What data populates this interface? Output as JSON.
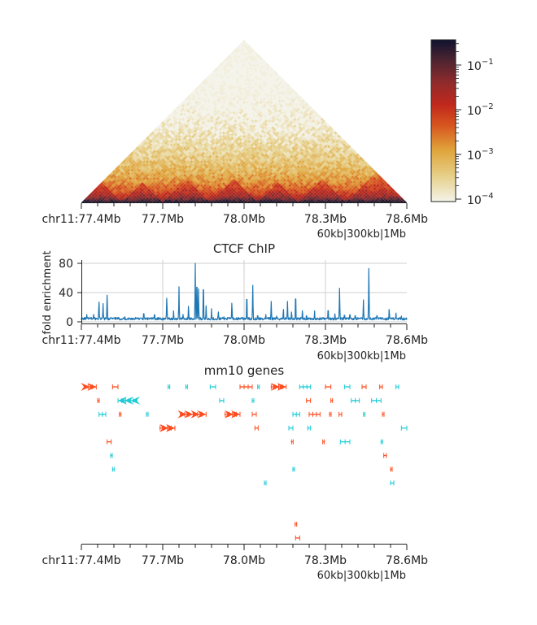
{
  "chart_data": [
    {
      "type": "heatmap",
      "panel": "hic_contact_map",
      "region": "chr11:77.4Mb-78.6Mb",
      "x_ticks": [
        "chr11:77.4Mb",
        "77.7Mb",
        "78.0Mb",
        "78.3Mb",
        "78.6Mb"
      ],
      "x_tick_values_mb": [
        77.4,
        77.7,
        78.0,
        78.3,
        78.6
      ],
      "scale_note": "60kb|300kb|1Mb",
      "colorbar": {
        "scale": "log",
        "range": [
          0.0001,
          0.3
        ],
        "tick_labels": [
          "10^-1",
          "10^-2",
          "10^-3",
          "10^-4"
        ],
        "tick_values": [
          0.1,
          0.01,
          0.001,
          0.0001
        ],
        "colormap": [
          "#f4f3ea",
          "#e6cf88",
          "#e0a33a",
          "#d7561f",
          "#c0281c",
          "#8e2a2c",
          "#4a2430",
          "#0f1230"
        ]
      },
      "tad_boundaries_mb": [
        77.4,
        77.55,
        77.7,
        77.88,
        78.05,
        78.2,
        78.38,
        78.6
      ]
    },
    {
      "type": "line",
      "panel": "chip_track",
      "title": "CTCF ChIP",
      "ylabel": "fold enrichment",
      "ylim": [
        0,
        85
      ],
      "y_ticks": [
        "0",
        "40",
        "80"
      ],
      "y_tick_values": [
        0,
        40,
        80
      ],
      "x_ticks": [
        "chr11:77.4Mb",
        "77.7Mb",
        "78.0Mb",
        "78.3Mb",
        "78.6Mb"
      ],
      "x_tick_values_mb": [
        77.4,
        77.7,
        78.0,
        78.3,
        78.6
      ],
      "scale_note": "60kb|300kb|1Mb",
      "grid": true,
      "color": "#1f77b4",
      "baseline": 2.5,
      "peaks": [
        {
          "x": 77.42,
          "y": 10
        },
        {
          "x": 77.43,
          "y": 7
        },
        {
          "x": 77.445,
          "y": 12
        },
        {
          "x": 77.465,
          "y": 32
        },
        {
          "x": 77.48,
          "y": 25
        },
        {
          "x": 77.495,
          "y": 43
        },
        {
          "x": 77.51,
          "y": 8
        },
        {
          "x": 77.53,
          "y": 6
        },
        {
          "x": 77.56,
          "y": 7
        },
        {
          "x": 77.6,
          "y": 6
        },
        {
          "x": 77.63,
          "y": 16
        },
        {
          "x": 77.67,
          "y": 14
        },
        {
          "x": 77.715,
          "y": 38
        },
        {
          "x": 77.74,
          "y": 15
        },
        {
          "x": 77.76,
          "y": 48
        },
        {
          "x": 77.775,
          "y": 12
        },
        {
          "x": 77.795,
          "y": 25
        },
        {
          "x": 77.82,
          "y": 80
        },
        {
          "x": 77.826,
          "y": 68
        },
        {
          "x": 77.832,
          "y": 45
        },
        {
          "x": 77.85,
          "y": 63
        },
        {
          "x": 77.86,
          "y": 22
        },
        {
          "x": 77.88,
          "y": 18
        },
        {
          "x": 77.905,
          "y": 16
        },
        {
          "x": 77.925,
          "y": 8
        },
        {
          "x": 77.955,
          "y": 30
        },
        {
          "x": 77.99,
          "y": 8
        },
        {
          "x": 78.01,
          "y": 44
        },
        {
          "x": 78.032,
          "y": 50
        },
        {
          "x": 78.05,
          "y": 12
        },
        {
          "x": 78.08,
          "y": 10
        },
        {
          "x": 78.1,
          "y": 28
        },
        {
          "x": 78.12,
          "y": 8
        },
        {
          "x": 78.145,
          "y": 20
        },
        {
          "x": 78.16,
          "y": 28
        },
        {
          "x": 78.175,
          "y": 16
        },
        {
          "x": 78.19,
          "y": 45
        },
        {
          "x": 78.215,
          "y": 18
        },
        {
          "x": 78.23,
          "y": 12
        },
        {
          "x": 78.26,
          "y": 15
        },
        {
          "x": 78.29,
          "y": 8
        },
        {
          "x": 78.31,
          "y": 22
        },
        {
          "x": 78.335,
          "y": 13
        },
        {
          "x": 78.352,
          "y": 46
        },
        {
          "x": 78.37,
          "y": 13
        },
        {
          "x": 78.39,
          "y": 14
        },
        {
          "x": 78.41,
          "y": 12
        },
        {
          "x": 78.44,
          "y": 30
        },
        {
          "x": 78.46,
          "y": 73
        },
        {
          "x": 78.49,
          "y": 12
        },
        {
          "x": 78.51,
          "y": 8
        },
        {
          "x": 78.535,
          "y": 20
        },
        {
          "x": 78.56,
          "y": 12
        },
        {
          "x": 78.58,
          "y": 8
        }
      ]
    },
    {
      "type": "gene_track",
      "panel": "gene_annotation",
      "title": "mm10 genes",
      "x_ticks": [
        "chr11:77.4Mb",
        "77.7Mb",
        "78.0Mb",
        "78.3Mb",
        "78.6Mb"
      ],
      "x_tick_values_mb": [
        77.4,
        77.7,
        78.0,
        78.3,
        78.6
      ],
      "scale_note": "60kb|300kb|1Mb",
      "colors": {
        "plus_strand": "#ff4a1c",
        "minus_strand": "#1ccbd5"
      },
      "genes": [
        {
          "row": 0,
          "start": 77.41,
          "end": 77.455,
          "strand": "+",
          "large": true
        },
        {
          "row": 0,
          "start": 77.515,
          "end": 77.535,
          "strand": "+"
        },
        {
          "row": 0,
          "start": 77.72,
          "end": 77.724,
          "strand": "-"
        },
        {
          "row": 0,
          "start": 77.785,
          "end": 77.789,
          "strand": "-"
        },
        {
          "row": 0,
          "start": 77.875,
          "end": 77.895,
          "strand": "-"
        },
        {
          "row": 0,
          "start": 77.985,
          "end": 78.03,
          "strand": "+"
        },
        {
          "row": 0,
          "start": 78.05,
          "end": 78.054,
          "strand": "-"
        },
        {
          "row": 0,
          "start": 78.1,
          "end": 78.155,
          "strand": "+",
          "large": true
        },
        {
          "row": 0,
          "start": 78.205,
          "end": 78.245,
          "strand": "-"
        },
        {
          "row": 0,
          "start": 78.3,
          "end": 78.32,
          "strand": "+"
        },
        {
          "row": 0,
          "start": 78.37,
          "end": 78.39,
          "strand": "-"
        },
        {
          "row": 0,
          "start": 78.435,
          "end": 78.45,
          "strand": "+"
        },
        {
          "row": 0,
          "start": 78.5,
          "end": 78.51,
          "strand": "+"
        },
        {
          "row": 0,
          "start": 78.56,
          "end": 78.57,
          "strand": "-"
        },
        {
          "row": 1,
          "start": 77.46,
          "end": 77.465,
          "strand": "+"
        },
        {
          "row": 1,
          "start": 77.535,
          "end": 77.605,
          "strand": "-",
          "large": true
        },
        {
          "row": 1,
          "start": 77.91,
          "end": 77.925,
          "strand": "-"
        },
        {
          "row": 1,
          "start": 78.03,
          "end": 78.034,
          "strand": "-"
        },
        {
          "row": 1,
          "start": 78.23,
          "end": 78.245,
          "strand": "+"
        },
        {
          "row": 1,
          "start": 78.32,
          "end": 78.326,
          "strand": "+"
        },
        {
          "row": 1,
          "start": 78.395,
          "end": 78.425,
          "strand": "-"
        },
        {
          "row": 1,
          "start": 78.47,
          "end": 78.505,
          "strand": "-"
        },
        {
          "row": 2,
          "start": 77.465,
          "end": 77.49,
          "strand": "-"
        },
        {
          "row": 2,
          "start": 77.54,
          "end": 77.546,
          "strand": "+"
        },
        {
          "row": 2,
          "start": 77.64,
          "end": 77.644,
          "strand": "-"
        },
        {
          "row": 2,
          "start": 77.765,
          "end": 77.86,
          "strand": "+",
          "large": true
        },
        {
          "row": 2,
          "start": 77.93,
          "end": 77.985,
          "strand": "+",
          "large": true
        },
        {
          "row": 2,
          "start": 78.03,
          "end": 78.045,
          "strand": "+"
        },
        {
          "row": 2,
          "start": 78.18,
          "end": 78.205,
          "strand": "-"
        },
        {
          "row": 2,
          "start": 78.24,
          "end": 78.28,
          "strand": "+"
        },
        {
          "row": 2,
          "start": 78.315,
          "end": 78.32,
          "strand": "+"
        },
        {
          "row": 2,
          "start": 78.35,
          "end": 78.36,
          "strand": "+"
        },
        {
          "row": 2,
          "start": 78.44,
          "end": 78.445,
          "strand": "-"
        },
        {
          "row": 2,
          "start": 78.51,
          "end": 78.514,
          "strand": "+"
        },
        {
          "row": 3,
          "start": 77.69,
          "end": 77.745,
          "strand": "+",
          "large": true
        },
        {
          "row": 3,
          "start": 78.04,
          "end": 78.052,
          "strand": "+"
        },
        {
          "row": 3,
          "start": 78.165,
          "end": 78.18,
          "strand": "-"
        },
        {
          "row": 3,
          "start": 78.235,
          "end": 78.245,
          "strand": "-"
        },
        {
          "row": 3,
          "start": 78.58,
          "end": 78.6,
          "strand": "-"
        },
        {
          "row": 4,
          "start": 77.495,
          "end": 77.51,
          "strand": "+"
        },
        {
          "row": 4,
          "start": 78.175,
          "end": 78.18,
          "strand": "+"
        },
        {
          "row": 4,
          "start": 78.29,
          "end": 78.295,
          "strand": "+"
        },
        {
          "row": 4,
          "start": 78.355,
          "end": 78.39,
          "strand": "-"
        },
        {
          "row": 4,
          "start": 78.505,
          "end": 78.51,
          "strand": "-"
        },
        {
          "row": 5,
          "start": 77.508,
          "end": 77.514,
          "strand": "-"
        },
        {
          "row": 5,
          "start": 78.515,
          "end": 78.525,
          "strand": "+"
        },
        {
          "row": 6,
          "start": 77.515,
          "end": 77.519,
          "strand": "-"
        },
        {
          "row": 6,
          "start": 78.18,
          "end": 78.184,
          "strand": "-"
        },
        {
          "row": 6,
          "start": 78.54,
          "end": 78.544,
          "strand": "+"
        },
        {
          "row": 7,
          "start": 78.075,
          "end": 78.08,
          "strand": "-"
        },
        {
          "row": 7,
          "start": 78.54,
          "end": 78.552,
          "strand": "-"
        },
        {
          "row": 10,
          "start": 78.188,
          "end": 78.192,
          "strand": "+"
        },
        {
          "row": 11,
          "start": 78.19,
          "end": 78.205,
          "strand": "+"
        }
      ]
    }
  ]
}
